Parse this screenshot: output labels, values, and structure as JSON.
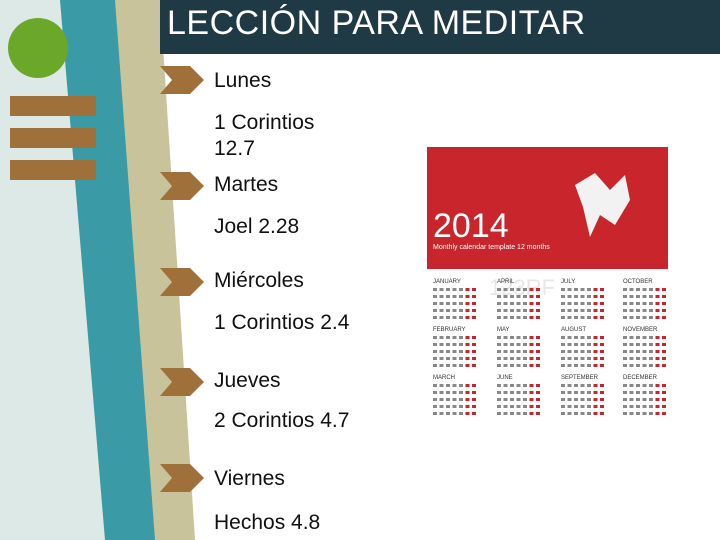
{
  "slide": {
    "title": "LECCIÓN PARA MEDITAR",
    "accent_dark": "#1f3a44",
    "accent_teal": "#3a9aa6",
    "accent_sand": "#c8c39a",
    "accent_brown": "#a0703a",
    "accent_green": "#6ba82a"
  },
  "schedule": [
    {
      "day": "Lunes",
      "reading": "1 Corintios 12.7"
    },
    {
      "day": "Martes",
      "reading": "Joel 2.28"
    },
    {
      "day": "Miércoles",
      "reading": "1 Corintios 2.4"
    },
    {
      "day": "Jueves",
      "reading": "2 Corintios 4.7"
    },
    {
      "day": "Viernes",
      "reading": "Hechos 4.8"
    }
  ],
  "calendar": {
    "year": "2014",
    "subtitle": "Monthly calendar template 12 months",
    "watermark": "123RF",
    "months": [
      "JANUARY",
      "APRIL",
      "JULY",
      "OCTOBER",
      "FEBRUARY",
      "MAY",
      "AUGUST",
      "NOVEMBER",
      "MARCH",
      "JUNE",
      "SEPTEMBER",
      "DECEMBER"
    ]
  }
}
